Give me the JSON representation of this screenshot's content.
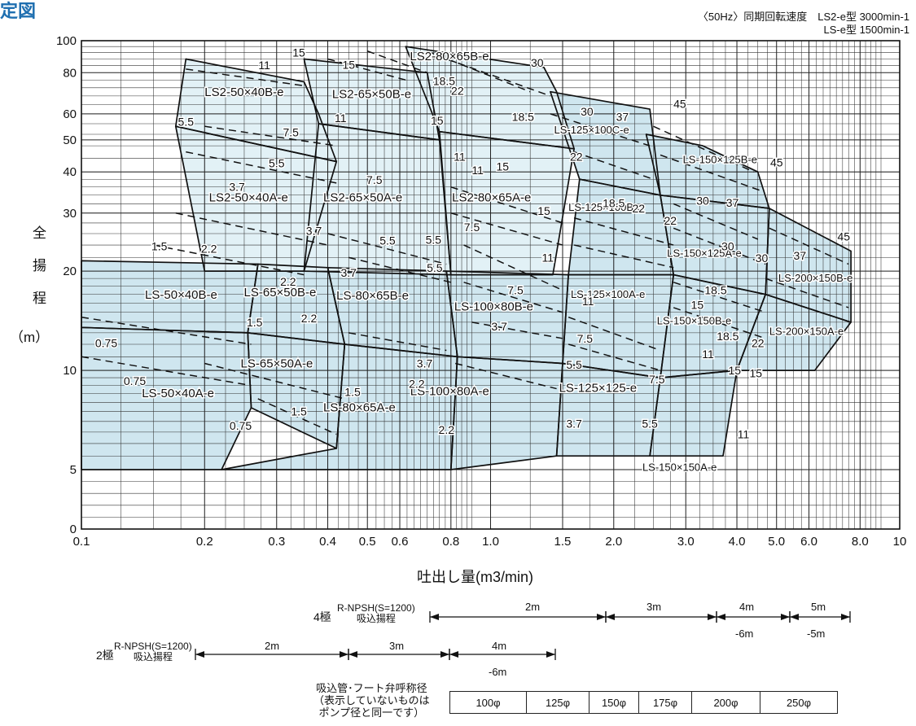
{
  "title_fragment": "定図",
  "sync_speed": {
    "line1": "〈50Hz〉同期回転速度　LS2-e型 3000min-1",
    "line2": "LS-e型 1500min-1"
  },
  "chart_data": {
    "type": "performance-selection-chart",
    "ylabel": [
      "全",
      "揚",
      "程",
      "（m）"
    ],
    "xlabel": "吐出し量(m3/min)",
    "x_ticks": [
      {
        "v": 0.1,
        "label": "0.1"
      },
      {
        "v": 0.2,
        "label": "0.2"
      },
      {
        "v": 0.3,
        "label": "0.3"
      },
      {
        "v": 0.4,
        "label": "0.4"
      },
      {
        "v": 0.5,
        "label": "0.5"
      },
      {
        "v": 0.6,
        "label": "0.6"
      },
      {
        "v": 0.8,
        "label": "0.8"
      },
      {
        "v": 1.0,
        "label": "1.0"
      },
      {
        "v": 1.5,
        "label": "1.5"
      },
      {
        "v": 2.0,
        "label": "2.0"
      },
      {
        "v": 3.0,
        "label": "3.0"
      },
      {
        "v": 4.0,
        "label": "4.0"
      },
      {
        "v": 5.0,
        "label": "5.0"
      },
      {
        "v": 6.0,
        "label": "6.0"
      },
      {
        "v": 8.0,
        "label": "8.0"
      },
      {
        "v": 10,
        "label": "10"
      }
    ],
    "y_ticks": [
      {
        "v": 0,
        "label": "0"
      },
      {
        "v": 5,
        "label": "5"
      },
      {
        "v": 10,
        "label": "10"
      },
      {
        "v": 20,
        "label": "20"
      },
      {
        "v": 30,
        "label": "30"
      },
      {
        "v": 40,
        "label": "40"
      },
      {
        "v": 50,
        "label": "50"
      },
      {
        "v": 60,
        "label": "60"
      },
      {
        "v": 80,
        "label": "80"
      },
      {
        "v": 100,
        "label": "100"
      }
    ],
    "regions": [
      {
        "label": "LS-50×40A-e",
        "shade": "#cfe6ef",
        "poly": [
          [
            0.1,
            5
          ],
          [
            0.22,
            5
          ],
          [
            0.26,
            7.7
          ],
          [
            0.255,
            13
          ],
          [
            0.1,
            13.5
          ]
        ],
        "lx": 0.1405,
        "ly": 8.3
      },
      {
        "label": "LS-50×40B-e",
        "shade": "#cfe6ef",
        "poly": [
          [
            0.1,
            13.5
          ],
          [
            0.255,
            13
          ],
          [
            0.27,
            21
          ],
          [
            0.1,
            21.5
          ]
        ],
        "lx": 0.143,
        "ly": 16.5
      },
      {
        "label": "LS-65×50A-e",
        "shade": "#cfe6ef",
        "poly": [
          [
            0.26,
            7.7
          ],
          [
            0.42,
            5.8
          ],
          [
            0.44,
            12
          ],
          [
            0.255,
            13
          ]
        ],
        "lx": 0.245,
        "ly": 10.2
      },
      {
        "label": "LS-65×50B-e",
        "shade": "#cfe6ef",
        "poly": [
          [
            0.255,
            13
          ],
          [
            0.44,
            12
          ],
          [
            0.4,
            20.5
          ],
          [
            0.27,
            21
          ]
        ],
        "lx": 0.2495,
        "ly": 16.8
      },
      {
        "label": "LS-80×65A-e",
        "shade": "#cfe6ef",
        "poly": [
          [
            0.22,
            5
          ],
          [
            0.8,
            5
          ],
          [
            0.83,
            11
          ],
          [
            0.44,
            12
          ],
          [
            0.42,
            5.8
          ]
        ],
        "lx": 0.39,
        "ly": 7.5
      },
      {
        "label": "LS-80×65B-e",
        "shade": "#cfe6ef",
        "poly": [
          [
            0.44,
            12
          ],
          [
            0.83,
            11
          ],
          [
            0.78,
            20
          ],
          [
            0.4,
            20.5
          ]
        ],
        "lx": 0.42,
        "ly": 16.4
      },
      {
        "label": "LS-100×80A-e",
        "shade": "#cfe6ef",
        "poly": [
          [
            0.8,
            5
          ],
          [
            1.45,
            5.5
          ],
          [
            1.5,
            10.5
          ],
          [
            0.83,
            11
          ]
        ],
        "lx": 0.636,
        "ly": 8.4
      },
      {
        "label": "LS-100×80B-e",
        "shade": "#cfe6ef",
        "poly": [
          [
            0.83,
            11
          ],
          [
            1.5,
            10.5
          ],
          [
            1.55,
            19.5
          ],
          [
            0.78,
            20
          ]
        ],
        "lx": 0.815,
        "ly": 15.2
      },
      {
        "label": "LS-125×125-e",
        "shade": "#cfe6ef",
        "poly": [
          [
            1.45,
            5.5
          ],
          [
            2.45,
            5.5
          ],
          [
            2.6,
            9.5
          ],
          [
            1.5,
            10.5
          ]
        ],
        "lx": 1.47,
        "ly": 8.6
      },
      {
        "label": "LS-125×100A-e",
        "shade": "#cfe6ef",
        "poly": [
          [
            1.5,
            10.5
          ],
          [
            2.6,
            9.5
          ],
          [
            2.8,
            19.5
          ],
          [
            1.55,
            19.5
          ]
        ],
        "lx": 1.57,
        "ly": 16.6
      },
      {
        "label": "LS-150×150A-e",
        "shade": "#cfe6ef",
        "poly": [
          [
            2.45,
            5.5
          ],
          [
            3.7,
            5.5
          ],
          [
            4.0,
            10
          ],
          [
            2.6,
            9.5
          ]
        ],
        "lx": 2.35,
        "ly": 4.9
      },
      {
        "label": "LS-150×150B-e",
        "shade": "#cfe6ef",
        "poly": [
          [
            2.6,
            9.5
          ],
          [
            4.0,
            10
          ],
          [
            4.7,
            17
          ],
          [
            2.8,
            19.5
          ]
        ],
        "lx": 2.55,
        "ly": 13.8
      },
      {
        "label": "LS-200×150A-e",
        "shade": "#cfe6ef",
        "poly": [
          [
            4.0,
            10
          ],
          [
            6.2,
            10
          ],
          [
            7.6,
            14
          ],
          [
            4.7,
            17
          ]
        ],
        "lx": 4.8,
        "ly": 12.8
      },
      {
        "label": "LS-200×150B-e",
        "shade": "#cfe6ef",
        "poly": [
          [
            4.7,
            17
          ],
          [
            7.6,
            14
          ],
          [
            7.6,
            23
          ],
          [
            4.8,
            31
          ]
        ],
        "lx": 5.05,
        "ly": 18.6
      },
      {
        "label": "LS-150×125A-e",
        "shade": "#cfe6ef",
        "poly": [
          [
            2.8,
            19.5
          ],
          [
            4.7,
            17
          ],
          [
            4.8,
            31
          ],
          [
            2.6,
            34
          ]
        ],
        "lx": 2.7,
        "ly": 22.1
      },
      {
        "label": "LS-125×100B-e",
        "shade": "#cfe6ef",
        "poly": [
          [
            1.55,
            19.5
          ],
          [
            2.8,
            19.5
          ],
          [
            2.6,
            34
          ],
          [
            1.65,
            38
          ]
        ],
        "lx": 1.55,
        "ly": 30.5
      },
      {
        "label": "LS-150×125B-e",
        "shade": "#cfe6ef",
        "poly": [
          [
            2.6,
            34
          ],
          [
            4.8,
            31
          ],
          [
            4.5,
            40
          ],
          [
            3.3,
            48
          ],
          [
            2.4,
            52
          ]
        ],
        "lx": 2.95,
        "ly": 42.5
      },
      {
        "label": "LS-125×100C-e",
        "shade": "#cfe6ef",
        "poly": [
          [
            1.65,
            38
          ],
          [
            2.6,
            34
          ],
          [
            2.45,
            62
          ],
          [
            1.4,
            70
          ]
        ],
        "lx": 1.43,
        "ly": 52.3
      },
      {
        "label": "LS2-50×40A-e",
        "shade": "#e2f1f6",
        "poly": [
          [
            0.2,
            20
          ],
          [
            0.35,
            20
          ],
          [
            0.42,
            43
          ],
          [
            0.17,
            55
          ]
        ],
        "lx": 0.205,
        "ly": 32.5
      },
      {
        "label": "LS2-50×40B-e",
        "shade": "#e2f1f6",
        "poly": [
          [
            0.17,
            55
          ],
          [
            0.42,
            43
          ],
          [
            0.38,
            60
          ],
          [
            0.35,
            75
          ],
          [
            0.18,
            88
          ]
        ],
        "lx": 0.2,
        "ly": 68
      },
      {
        "label": "LS2-65×50A-e",
        "shade": "#e2f1f6",
        "poly": [
          [
            0.35,
            20
          ],
          [
            0.8,
            19.5
          ],
          [
            0.75,
            50
          ],
          [
            0.38,
            56
          ]
        ],
        "lx": 0.39,
        "ly": 32.5
      },
      {
        "label": "LS2-65×50B-e",
        "shade": "#e2f1f6",
        "poly": [
          [
            0.38,
            56
          ],
          [
            0.75,
            50
          ],
          [
            0.7,
            80
          ],
          [
            0.35,
            88
          ]
        ],
        "lx": 0.41,
        "ly": 67
      },
      {
        "label": "LS2-80×65A-e",
        "shade": "#e2f1f6",
        "poly": [
          [
            0.8,
            19.5
          ],
          [
            1.42,
            19.5
          ],
          [
            1.6,
            47
          ],
          [
            0.75,
            53
          ]
        ],
        "lx": 0.805,
        "ly": 32.5
      },
      {
        "label": "LS2-80×65B-e",
        "shade": "#e2f1f6",
        "poly": [
          [
            0.75,
            53
          ],
          [
            1.6,
            47
          ],
          [
            1.45,
            70
          ],
          [
            1.35,
            83
          ],
          [
            0.62,
            96
          ]
        ],
        "lx": 0.635,
        "ly": 87.2
      }
    ],
    "motor_labels": [
      {
        "t": "0.75",
        "x": 0.115,
        "y": 12.1
      },
      {
        "t": "0.75",
        "x": 0.135,
        "y": 9.3
      },
      {
        "t": "0.75",
        "x": 0.245,
        "y": 6.8
      },
      {
        "t": "1.5",
        "x": 0.265,
        "y": 14
      },
      {
        "t": "1.5",
        "x": 0.46,
        "y": 8.6
      },
      {
        "t": "1.5",
        "x": 0.34,
        "y": 7.5
      },
      {
        "t": "1.5",
        "x": 0.155,
        "y": 23.8
      },
      {
        "t": "2.2",
        "x": 0.205,
        "y": 23.4
      },
      {
        "t": "2.2",
        "x": 0.32,
        "y": 18.6
      },
      {
        "t": "2.2",
        "x": 0.36,
        "y": 14.4
      },
      {
        "t": "2.2",
        "x": 0.66,
        "y": 9.1
      },
      {
        "t": "2.2",
        "x": 0.78,
        "y": 6.6
      },
      {
        "t": "3.7",
        "x": 0.37,
        "y": 26.5
      },
      {
        "t": "3.7",
        "x": 0.45,
        "y": 19.8
      },
      {
        "t": "3.7",
        "x": 0.69,
        "y": 10.5
      },
      {
        "t": "3.7",
        "x": 1.05,
        "y": 13.6
      },
      {
        "t": "3.7",
        "x": 1.6,
        "y": 6.9
      },
      {
        "t": "3.7",
        "x": 0.24,
        "y": 36
      },
      {
        "t": "5.5",
        "x": 0.3,
        "y": 42.5
      },
      {
        "t": "5.5",
        "x": 0.18,
        "y": 56.8
      },
      {
        "t": "5.5",
        "x": 0.56,
        "y": 24.8
      },
      {
        "t": "5.5",
        "x": 0.725,
        "y": 24.9
      },
      {
        "t": "5.5",
        "x": 0.73,
        "y": 20.5
      },
      {
        "t": "5.5",
        "x": 1.6,
        "y": 10.4
      },
      {
        "t": "5.5",
        "x": 2.45,
        "y": 6.9
      },
      {
        "t": "7.5",
        "x": 0.325,
        "y": 52.8
      },
      {
        "t": "7.5",
        "x": 0.52,
        "y": 37.8
      },
      {
        "t": "7.5",
        "x": 0.9,
        "y": 27.2
      },
      {
        "t": "7.5",
        "x": 1.15,
        "y": 17.5
      },
      {
        "t": "7.5",
        "x": 1.7,
        "y": 12.5
      },
      {
        "t": "7.5",
        "x": 2.55,
        "y": 9.4
      },
      {
        "t": "11",
        "x": 0.28,
        "y": 84.3
      },
      {
        "t": "11",
        "x": 0.43,
        "y": 58.3
      },
      {
        "t": "11",
        "x": 0.93,
        "y": 40.5
      },
      {
        "t": "11",
        "x": 0.84,
        "y": 44.5
      },
      {
        "t": "11",
        "x": 1.38,
        "y": 22
      },
      {
        "t": "11",
        "x": 1.73,
        "y": 16.2
      },
      {
        "t": "11",
        "x": 3.4,
        "y": 11.2
      },
      {
        "t": "11",
        "x": 4.15,
        "y": 6.4
      },
      {
        "t": "15",
        "x": 0.34,
        "y": 92
      },
      {
        "t": "15",
        "x": 0.45,
        "y": 84.5
      },
      {
        "t": "15",
        "x": 0.74,
        "y": 57.3
      },
      {
        "t": "15",
        "x": 1.07,
        "y": 41.5
      },
      {
        "t": "15",
        "x": 1.35,
        "y": 30.5
      },
      {
        "t": "15",
        "x": 3.2,
        "y": 15.8
      },
      {
        "t": "15",
        "x": 3.95,
        "y": 10
      },
      {
        "t": "15",
        "x": 4.45,
        "y": 9.8
      },
      {
        "t": "18.5",
        "x": 0.77,
        "y": 75.4
      },
      {
        "t": "18.5",
        "x": 1.2,
        "y": 58.8
      },
      {
        "t": "18.5",
        "x": 2.0,
        "y": 32.2
      },
      {
        "t": "18.5",
        "x": 3.55,
        "y": 17.5
      },
      {
        "t": "18.5",
        "x": 3.8,
        "y": 12.7
      },
      {
        "t": "22",
        "x": 0.83,
        "y": 70.5
      },
      {
        "t": "22",
        "x": 1.62,
        "y": 44.5
      },
      {
        "t": "22",
        "x": 2.3,
        "y": 31
      },
      {
        "t": "22",
        "x": 2.75,
        "y": 28.5
      },
      {
        "t": "22",
        "x": 4.5,
        "y": 12.1
      },
      {
        "t": "30",
        "x": 1.3,
        "y": 85.7
      },
      {
        "t": "30",
        "x": 1.72,
        "y": 61
      },
      {
        "t": "30",
        "x": 3.3,
        "y": 32.7
      },
      {
        "t": "30",
        "x": 3.8,
        "y": 23.8
      },
      {
        "t": "30",
        "x": 4.6,
        "y": 21.9
      },
      {
        "t": "37",
        "x": 2.1,
        "y": 58.8
      },
      {
        "t": "37",
        "x": 3.9,
        "y": 32.3
      },
      {
        "t": "37",
        "x": 5.7,
        "y": 22.3
      },
      {
        "t": "45",
        "x": 2.9,
        "y": 64.3
      },
      {
        "t": "45",
        "x": 5.0,
        "y": 42.7
      },
      {
        "t": "45",
        "x": 7.3,
        "y": 25.5
      }
    ]
  },
  "npsh": {
    "four_pole": {
      "pole": "4極",
      "tag_top": "R-NPSH(S=1200)",
      "tag_bottom": "吸込揚程",
      "segments": [
        {
          "top": "2m",
          "bottom": ""
        },
        {
          "top": "3m",
          "bottom": ""
        },
        {
          "top": "4m",
          "bottom": "-6m"
        },
        {
          "top": "5m",
          "bottom": "-5m"
        }
      ]
    },
    "two_pole": {
      "pole": "2極",
      "tag_top": "R-NPSH(S=1200)",
      "tag_bottom": "吸込揚程",
      "segments": [
        {
          "top": "2m",
          "bottom": ""
        },
        {
          "top": "3m",
          "bottom": ""
        },
        {
          "top": "4m",
          "bottom": "-6m"
        }
      ]
    }
  },
  "suction_pipe": {
    "label_line1": "吸込管･フート弁呼称径",
    "label_line2": "表示していないものは",
    "label_line3": "ポンプ径と同一です",
    "sizes": [
      "100φ",
      "125φ",
      "150φ",
      "175φ",
      "200φ",
      "250φ"
    ]
  }
}
